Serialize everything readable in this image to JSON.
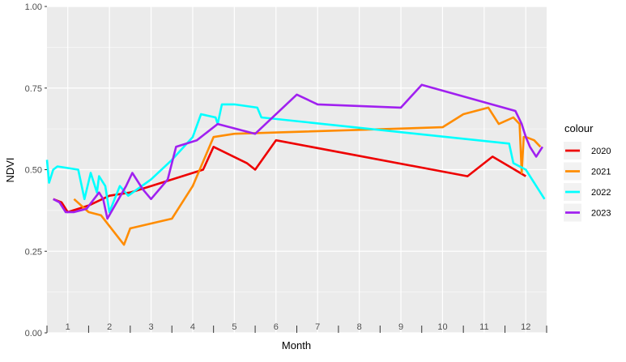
{
  "chart_data": {
    "type": "line",
    "xlabel": "Month",
    "ylabel": "NDVI",
    "xlim": [
      0.5,
      12.5
    ],
    "ylim": [
      0,
      1
    ],
    "y_ticks": [
      "0.00",
      "0.25",
      "0.50",
      "0.75",
      "1.00"
    ],
    "y_tick_values": [
      0,
      0.25,
      0.5,
      0.75,
      1
    ],
    "x_tick_labels": [
      "1",
      "2",
      "3",
      "4",
      "5",
      "6",
      "7",
      "8",
      "9",
      "10",
      "11",
      "12"
    ],
    "grid": true,
    "panel_background": "#ebebeb",
    "legend_position": "right",
    "legend_title": "colour",
    "series": [
      {
        "name": "2020",
        "color": "#ee0000",
        "x": [
          0.65,
          0.85,
          1.0,
          1.5,
          2.0,
          2.5,
          3.0,
          3.5,
          4.25,
          4.5,
          5.3,
          5.5,
          6.0,
          10.6,
          11.2,
          12.0
        ],
        "y": [
          0.41,
          0.4,
          0.37,
          0.39,
          0.42,
          0.43,
          0.45,
          0.47,
          0.5,
          0.57,
          0.52,
          0.5,
          0.59,
          0.48,
          0.54,
          0.48
        ]
      },
      {
        "name": "2021",
        "color": "#ff8c00",
        "x": [
          1.15,
          1.5,
          1.8,
          2.35,
          2.5,
          3.5,
          4.0,
          4.5,
          5.0,
          10.0,
          10.5,
          11.1,
          11.35,
          11.7,
          11.85,
          11.9,
          11.95,
          12.0,
          12.2,
          12.35
        ],
        "y": [
          0.41,
          0.37,
          0.36,
          0.27,
          0.32,
          0.35,
          0.45,
          0.6,
          0.61,
          0.63,
          0.67,
          0.69,
          0.64,
          0.66,
          0.64,
          0.49,
          0.6,
          0.6,
          0.59,
          0.57
        ]
      },
      {
        "name": "2022",
        "color": "#00ffff",
        "x": [
          0.5,
          0.55,
          0.65,
          0.75,
          1.25,
          1.4,
          1.55,
          1.7,
          1.75,
          1.9,
          2.0,
          2.25,
          2.45,
          3.0,
          3.5,
          4.0,
          4.2,
          4.55,
          4.6,
          4.7,
          5.0,
          5.55,
          5.65,
          11.6,
          11.7,
          12.0,
          12.3,
          12.45
        ],
        "y": [
          0.53,
          0.46,
          0.5,
          0.51,
          0.5,
          0.41,
          0.49,
          0.43,
          0.48,
          0.45,
          0.37,
          0.45,
          0.42,
          0.47,
          0.53,
          0.6,
          0.67,
          0.66,
          0.64,
          0.7,
          0.7,
          0.69,
          0.66,
          0.58,
          0.52,
          0.5,
          0.44,
          0.41
        ]
      },
      {
        "name": "2023",
        "color": "#a020f0",
        "x": [
          0.65,
          0.8,
          0.95,
          1.15,
          1.45,
          1.75,
          1.85,
          1.95,
          2.4,
          2.55,
          2.8,
          3.0,
          3.4,
          3.6,
          4.1,
          4.6,
          5.5,
          6.5,
          7.0,
          9.0,
          9.5,
          11.75,
          11.9,
          12.0,
          12.1,
          12.25,
          12.4
        ],
        "y": [
          0.41,
          0.4,
          0.37,
          0.37,
          0.38,
          0.43,
          0.41,
          0.35,
          0.45,
          0.49,
          0.44,
          0.41,
          0.47,
          0.57,
          0.59,
          0.64,
          0.61,
          0.73,
          0.7,
          0.69,
          0.76,
          0.68,
          0.64,
          0.6,
          0.57,
          0.54,
          0.57
        ]
      }
    ]
  }
}
